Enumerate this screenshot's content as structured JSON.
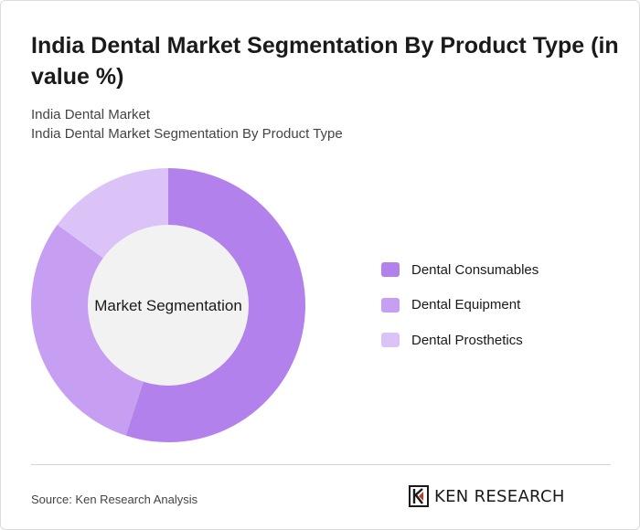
{
  "header": {
    "title": "India Dental Market Segmentation By Product Type (in value %)",
    "subtitle_line1": "India Dental Market",
    "subtitle_line2": "India Dental Market Segmentation By Product Type"
  },
  "chart_data": {
    "type": "pie",
    "center_label": "Market Segmentation",
    "categories": [
      "Dental Consumables",
      "Dental Equipment",
      "Dental Prosthetics"
    ],
    "values": [
      55,
      30,
      15
    ],
    "colors": [
      "#b281ec",
      "#c79ff2",
      "#dcc3f7"
    ],
    "legend_position": "right"
  },
  "footer": {
    "source": "Source: Ken Research Analysis",
    "logo_text": "KEN RESEARCH"
  }
}
